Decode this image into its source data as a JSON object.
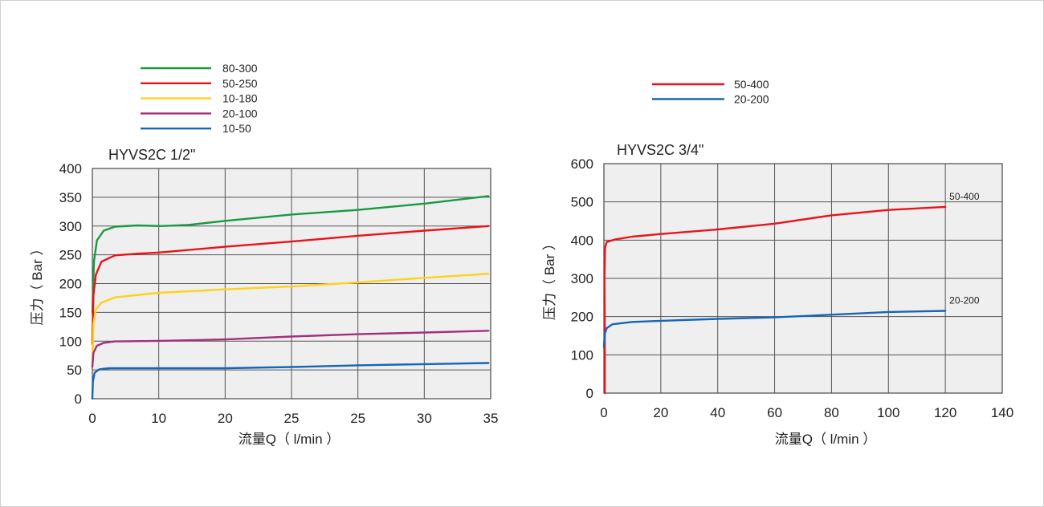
{
  "chart_data": [
    {
      "type": "line",
      "title": "HYVS2C 1/2\"",
      "xlabel": "流量Q（ l/min ）",
      "ylabel": "压力（ Bar ）",
      "xlim": [
        0,
        35
      ],
      "ylim": [
        0,
        400
      ],
      "x_tick_labels": [
        "0",
        "10",
        "20",
        "25",
        "25",
        "30",
        "35"
      ],
      "y_ticks": [
        0,
        50,
        100,
        150,
        200,
        250,
        300,
        350,
        400
      ],
      "grid": true,
      "legend_position": "top-left",
      "series": [
        {
          "name": "80-300",
          "color": "#1a9a3f",
          "points": [
            [
              0,
              150
            ],
            [
              0.15,
              240
            ],
            [
              0.4,
              275
            ],
            [
              1,
              292
            ],
            [
              2,
              299
            ],
            [
              4,
              301
            ],
            [
              6,
              300
            ],
            [
              8.5,
              302
            ],
            [
              11.67,
              309
            ],
            [
              17.5,
              320
            ],
            [
              23.3,
              328
            ],
            [
              29.2,
              339
            ],
            [
              34.8,
              352
            ]
          ]
        },
        {
          "name": "50-250",
          "color": "#e8141b",
          "points": [
            [
              0,
              95
            ],
            [
              0.1,
              180
            ],
            [
              0.3,
              215
            ],
            [
              0.8,
              238
            ],
            [
              2,
              249
            ],
            [
              4,
              252
            ],
            [
              5.83,
              254
            ],
            [
              11.67,
              264
            ],
            [
              17.5,
              273
            ],
            [
              23.3,
              283
            ],
            [
              29.2,
              292
            ],
            [
              34.8,
              300
            ]
          ]
        },
        {
          "name": "10-180",
          "color": "#ffd21a",
          "points": [
            [
              0,
              55
            ],
            [
              0.1,
              130
            ],
            [
              0.3,
              155
            ],
            [
              0.8,
              167
            ],
            [
              2,
              176
            ],
            [
              5.83,
              184
            ],
            [
              11.67,
              190
            ],
            [
              17.5,
              195
            ],
            [
              23.3,
              202
            ],
            [
              29.2,
              210
            ],
            [
              34.8,
              217
            ]
          ]
        },
        {
          "name": "20-100",
          "color": "#a3307a",
          "points": [
            [
              0,
              55
            ],
            [
              0.1,
              80
            ],
            [
              0.4,
              92
            ],
            [
              1,
              97
            ],
            [
              2,
              99.5
            ],
            [
              5.83,
              100.5
            ],
            [
              11.67,
              103
            ],
            [
              17.5,
              108
            ],
            [
              23.3,
              112
            ],
            [
              29.2,
              115
            ],
            [
              34.8,
              118
            ]
          ]
        },
        {
          "name": "10-50",
          "color": "#1565b8",
          "points": [
            [
              0,
              0
            ],
            [
              0.05,
              30
            ],
            [
              0.2,
              45
            ],
            [
              0.6,
              51
            ],
            [
              1.5,
              53
            ],
            [
              5.83,
              53
            ],
            [
              11.67,
              53
            ],
            [
              17.5,
              55
            ],
            [
              23.3,
              58
            ],
            [
              29.2,
              60
            ],
            [
              34.8,
              62
            ]
          ]
        }
      ]
    },
    {
      "type": "line",
      "title": "HYVS2C 3/4\"",
      "xlabel": "流量Q（ l/min ）",
      "ylabel": "压力（ Bar ）",
      "xlim": [
        0,
        140
      ],
      "ylim": [
        0,
        600
      ],
      "x_tick_labels": [
        "0",
        "20",
        "40",
        "60",
        "80",
        "100",
        "120",
        "140"
      ],
      "y_ticks": [
        0,
        100,
        200,
        300,
        400,
        500,
        600
      ],
      "grid": true,
      "legend_position": "top-center",
      "series": [
        {
          "name": "50-400",
          "color": "#e8141b",
          "end_label": "50-400",
          "points": [
            [
              0.3,
              0
            ],
            [
              0.3,
              150
            ],
            [
              0.2,
              300
            ],
            [
              0.4,
              380
            ],
            [
              1,
              395
            ],
            [
              4,
              402
            ],
            [
              10,
              409
            ],
            [
              20,
              416
            ],
            [
              40,
              428
            ],
            [
              60,
              443
            ],
            [
              80,
              465
            ],
            [
              100,
              479
            ],
            [
              120,
              487
            ]
          ]
        },
        {
          "name": "20-200",
          "color": "#1565b8",
          "end_label": "20-200",
          "points": [
            [
              0,
              120
            ],
            [
              0.3,
              155
            ],
            [
              1,
              170
            ],
            [
              3,
              180
            ],
            [
              10,
              186
            ],
            [
              20,
              189
            ],
            [
              40,
              194
            ],
            [
              60,
              198
            ],
            [
              80,
              205
            ],
            [
              100,
              212
            ],
            [
              120,
              215
            ]
          ]
        }
      ]
    }
  ]
}
